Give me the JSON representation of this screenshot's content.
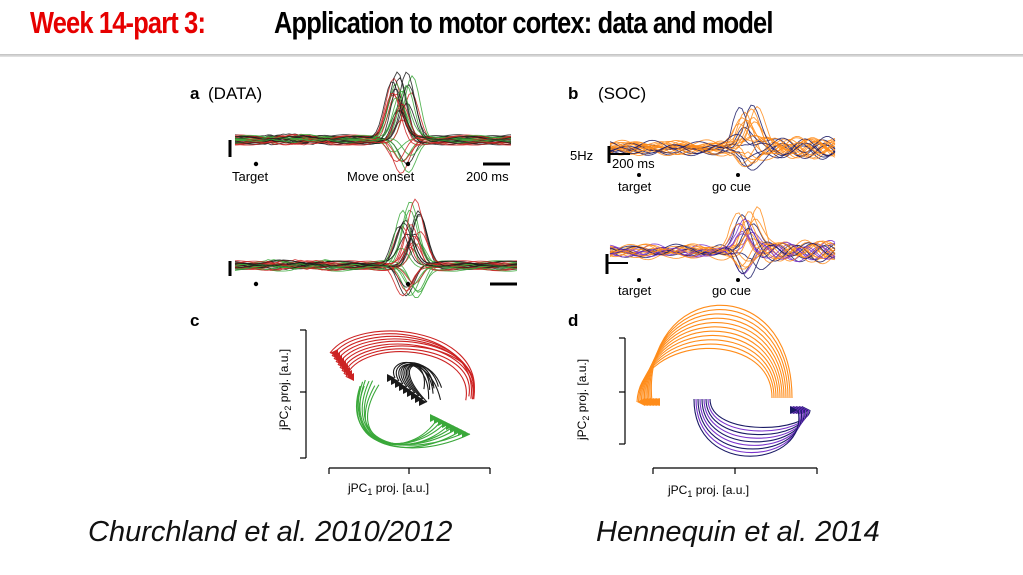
{
  "title": {
    "week_label": "Week 14-part 3:",
    "main_label": "Application to motor cortex: data and model"
  },
  "figure": {
    "panel_a": {
      "letter": "a",
      "label": "(DATA)",
      "events": [
        "Target",
        "Move onset"
      ],
      "scale_bar": "200 ms"
    },
    "panel_b": {
      "letter": "b",
      "label": "(SOC)",
      "rate_bar": "5Hz",
      "scale_bar": "200 ms",
      "events": [
        "target",
        "go cue"
      ]
    },
    "panel_c": {
      "letter": "c",
      "ylabel_main": "jPC",
      "ylabel_sub": "2",
      "ylabel_rest": " proj. [a.u.]",
      "xlabel_main": "jPC",
      "xlabel_sub": "1",
      "xlabel_rest": " proj. [a.u.]"
    },
    "panel_d": {
      "letter": "d",
      "ylabel_main": "jPC",
      "ylabel_sub": "2",
      "ylabel_rest": " proj. [a.u.]",
      "xlabel_main": "jPC",
      "xlabel_sub": "1",
      "xlabel_rest": " proj. [a.u.]"
    },
    "colors": {
      "data_green": "#3aa83a",
      "data_red": "#cc2222",
      "data_dark": "#1a1a1a",
      "soc_orange": "#ff8c1a",
      "soc_navy": "#1a1a66",
      "soc_purple": "#7a33cc"
    }
  },
  "captions": {
    "left": "Churchland et al. 2010/2012",
    "right": "Hennequin et al. 2014"
  }
}
